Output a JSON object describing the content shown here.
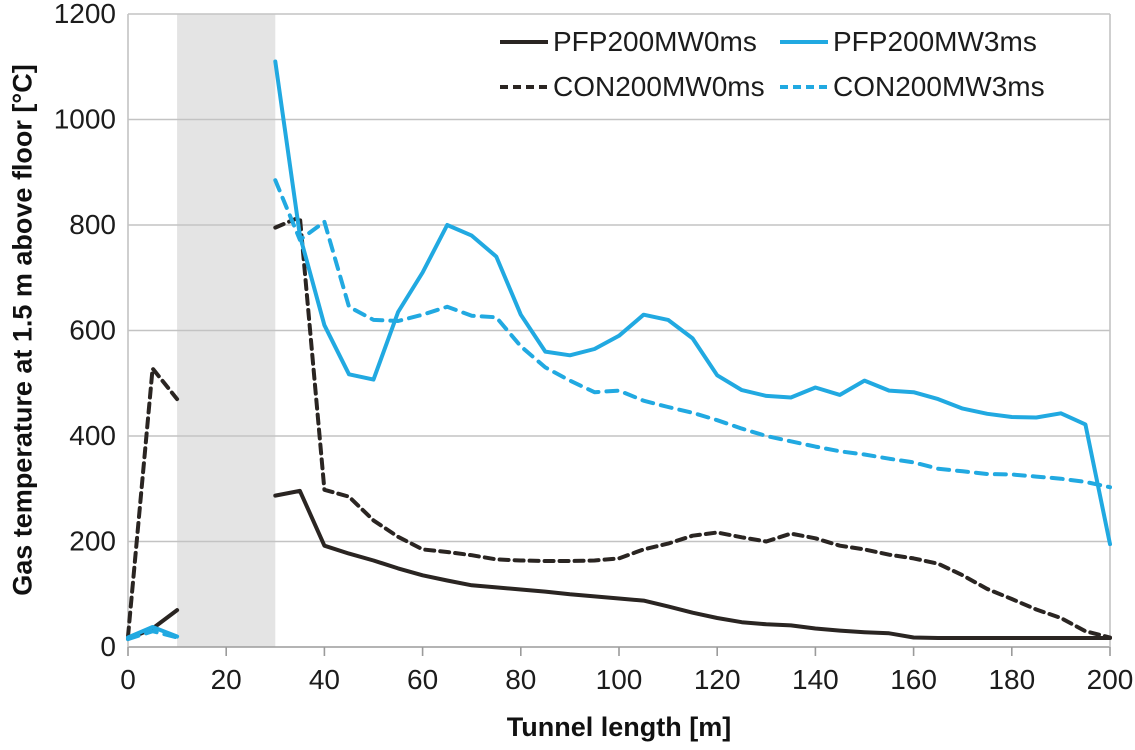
{
  "chart_data": {
    "type": "line",
    "title": "",
    "xlabel": "Tunnel length [m]",
    "ylabel": "Gas temperature at 1.5 m above floor [°C]",
    "xlim": [
      0,
      200
    ],
    "ylim": [
      0,
      1200
    ],
    "x_ticks": [
      0,
      20,
      40,
      60,
      80,
      100,
      120,
      140,
      160,
      180,
      200
    ],
    "y_ticks": [
      0,
      200,
      400,
      600,
      800,
      1000,
      1200
    ],
    "grid": "horizontal-only",
    "legend_position": "top-right-inside-two-columns",
    "shaded_region": {
      "x_start": 10,
      "x_end": 30,
      "color": "#e4e4e4"
    },
    "x": [
      0,
      5,
      10,
      15,
      20,
      25,
      30,
      35,
      40,
      45,
      50,
      55,
      60,
      65,
      70,
      75,
      80,
      85,
      90,
      95,
      100,
      105,
      110,
      115,
      120,
      125,
      130,
      135,
      140,
      145,
      150,
      155,
      160,
      165,
      170,
      175,
      180,
      185,
      190,
      195,
      200
    ],
    "series": [
      {
        "name": "PFP200MW0ms",
        "color": "#2a2522",
        "style": "solid",
        "values": [
          15,
          35,
          70,
          null,
          null,
          null,
          287,
          296,
          192,
          177,
          164,
          149,
          136,
          126,
          117,
          113,
          109,
          105,
          100,
          96,
          92,
          88,
          77,
          65,
          55,
          47,
          43,
          41,
          35,
          31,
          28,
          26,
          18,
          17,
          17,
          17,
          17,
          17,
          17,
          17,
          17
        ]
      },
      {
        "name": "PFP200MW3ms",
        "color": "#21a9e1",
        "style": "solid",
        "values": [
          18,
          38,
          20,
          null,
          null,
          null,
          1110,
          780,
          610,
          517,
          507,
          635,
          710,
          800,
          780,
          740,
          630,
          560,
          553,
          565,
          590,
          630,
          620,
          585,
          515,
          487,
          476,
          473,
          492,
          478,
          505,
          486,
          483,
          470,
          452,
          442,
          436,
          435,
          443,
          422,
          195
        ]
      },
      {
        "name": "CON200MW0ms",
        "color": "#2a2522",
        "style": "dashed",
        "values": [
          20,
          528,
          470,
          null,
          null,
          null,
          795,
          815,
          298,
          285,
          240,
          209,
          185,
          180,
          174,
          166,
          164,
          163,
          163,
          164,
          168,
          185,
          196,
          211,
          217,
          208,
          200,
          215,
          206,
          192,
          185,
          175,
          168,
          158,
          136,
          110,
          91,
          71,
          55,
          30,
          18
        ]
      },
      {
        "name": "CON200MW3ms",
        "color": "#21a9e1",
        "style": "dashed",
        "values": [
          15,
          30,
          18,
          null,
          null,
          null,
          885,
          772,
          806,
          645,
          620,
          618,
          630,
          645,
          628,
          625,
          570,
          530,
          505,
          483,
          486,
          467,
          455,
          444,
          430,
          414,
          400,
          390,
          380,
          371,
          365,
          357,
          350,
          338,
          333,
          328,
          327,
          323,
          319,
          313,
          303
        ]
      }
    ],
    "colors": {
      "pfp_black": "#2a2522",
      "cyan": "#21a9e1",
      "gridline": "#c3c3c3",
      "axis_line": "#9b9b9b",
      "shaded_band": "#e4e4e4",
      "text": "#1c1c1c"
    }
  }
}
